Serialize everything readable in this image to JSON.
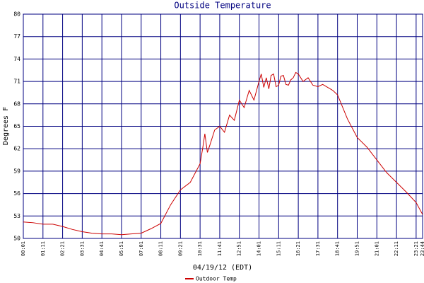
{
  "chart_data": {
    "type": "line",
    "title": "Outside Temperature",
    "xlabel": "04/19/12 (EDT)",
    "ylabel": "Degrees F",
    "x": [
      "00:01",
      "00:36",
      "01:11",
      "01:46",
      "02:21",
      "02:56",
      "03:31",
      "04:06",
      "04:41",
      "05:16",
      "05:51",
      "06:26",
      "07:01",
      "07:36",
      "08:11",
      "08:46",
      "09:21",
      "09:56",
      "10:31",
      "10:40",
      "10:48",
      "10:57",
      "11:06",
      "11:23",
      "11:41",
      "11:58",
      "12:16",
      "12:33",
      "12:51",
      "13:08",
      "13:26",
      "13:43",
      "14:01",
      "14:09",
      "14:18",
      "14:27",
      "14:36",
      "14:44",
      "14:53",
      "15:02",
      "15:11",
      "15:19",
      "15:28",
      "15:37",
      "15:46",
      "15:54",
      "16:03",
      "16:12",
      "16:21",
      "16:38",
      "16:56",
      "17:13",
      "17:31",
      "17:48",
      "18:06",
      "18:24",
      "18:41",
      "19:16",
      "19:51",
      "20:26",
      "21:01",
      "21:36",
      "22:11",
      "22:46",
      "23:21",
      "23:44"
    ],
    "series": [
      {
        "name": "Outdoor Temp",
        "color": "#cc0000",
        "values": [
          52.2,
          52.1,
          51.9,
          51.9,
          51.6,
          51.2,
          50.9,
          50.7,
          50.6,
          50.6,
          50.5,
          50.6,
          50.7,
          51.3,
          52.0,
          54.5,
          56.5,
          57.5,
          60.0,
          62.0,
          64.0,
          61.5,
          62.5,
          64.5,
          65.0,
          64.2,
          66.5,
          65.8,
          68.5,
          67.5,
          69.8,
          68.5,
          71.0,
          72.0,
          70.2,
          71.5,
          70.0,
          71.8,
          72.0,
          70.3,
          70.5,
          71.7,
          71.8,
          70.6,
          70.5,
          71.2,
          71.5,
          72.2,
          72.0,
          71.0,
          71.5,
          70.5,
          70.3,
          70.6,
          70.2,
          69.8,
          69.2,
          66.0,
          63.5,
          62.2,
          60.5,
          58.8,
          57.5,
          56.2,
          54.8,
          53.2
        ]
      }
    ],
    "xlim": [
      "00:01",
      "23:44"
    ],
    "xticks": [
      "00:01",
      "01:11",
      "02:21",
      "03:31",
      "04:41",
      "05:51",
      "07:01",
      "08:11",
      "09:21",
      "10:31",
      "11:41",
      "12:51",
      "14:01",
      "15:11",
      "16:21",
      "17:31",
      "18:41",
      "19:51",
      "21:01",
      "22:11",
      "23:21",
      "23:44"
    ],
    "ylim": [
      50,
      80
    ],
    "yticks": [
      50,
      53,
      56,
      59,
      62,
      65,
      68,
      71,
      74,
      77,
      80
    ],
    "grid": true,
    "grid_color": "#000080"
  }
}
